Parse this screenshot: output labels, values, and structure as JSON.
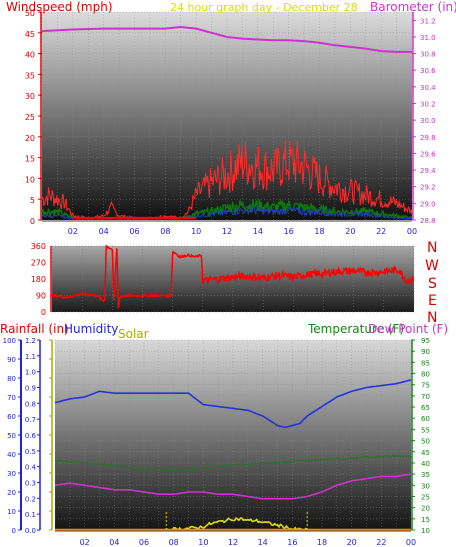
{
  "header": {
    "windspeed_label": "Windspeed (mph)",
    "title": "24 hour graph day - December 28",
    "barometer_label": "Barometer (in)"
  },
  "compass": {
    "letters": [
      "N",
      "W",
      "S",
      "E",
      "N"
    ]
  },
  "legend": {
    "rainfall": "Rainfall (in)",
    "humidity": "Humidity",
    "solar": "Solar",
    "temperature": "Temperature (F)",
    "dew_point": "Dew Point (F)"
  },
  "colors": {
    "wind": "#ff0000",
    "gust": "#ff2a2a",
    "wind_avg": "#0b7a0b",
    "wind_low": "#1f3fbf",
    "barometer": "#cc33cc",
    "humidity": "#2233dd",
    "temperature": "#227722",
    "dew_point": "#cc33cc",
    "solar": "#dddd00",
    "rain": "#ff8800",
    "left_axis_red": "#dd0000",
    "blue_axis": "#2222dd",
    "yellow_axis": "#aaaa00",
    "green_axis": "#118811",
    "pink_axis": "#cc33cc"
  },
  "chart_data": [
    {
      "type": "line",
      "title": "24 hour graph day - December 28",
      "x_ticks": [
        "02",
        "04",
        "06",
        "08",
        "10",
        "12",
        "14",
        "16",
        "18",
        "20",
        "22",
        "00"
      ],
      "x_range_hours": [
        0,
        24
      ],
      "ylabel": "Windspeed (mph)",
      "ylim": [
        0,
        50
      ],
      "y_ticks": [
        0,
        5,
        10,
        15,
        20,
        25,
        30,
        35,
        40,
        45,
        50
      ],
      "y2label": "Barometer (in)",
      "y2lim": [
        28.8,
        31.3
      ],
      "y2_ticks": [
        28.8,
        29.0,
        29.2,
        29.4,
        29.6,
        29.8,
        30.0,
        30.2,
        30.4,
        30.6,
        30.8,
        31.0,
        31.2
      ],
      "series": [
        {
          "axis": "y2",
          "x": [
            0,
            2,
            4,
            6,
            8,
            9,
            10,
            11,
            12,
            13,
            14,
            15,
            16,
            17,
            18,
            19,
            20,
            21,
            22,
            23,
            24
          ],
          "values": [
            31.07,
            31.09,
            31.1,
            31.1,
            31.1,
            31.12,
            31.1,
            31.05,
            31.0,
            30.98,
            30.97,
            30.96,
            30.96,
            30.95,
            30.93,
            30.9,
            30.88,
            30.86,
            30.83,
            30.82,
            30.82
          ]
        },
        {
          "axis": "y",
          "x": [
            0,
            0.5,
            1,
            1.5,
            2,
            3,
            4,
            4.5,
            5,
            6,
            7,
            8,
            9,
            9.5,
            10,
            11,
            12,
            13,
            14,
            15,
            16,
            17,
            18,
            19,
            20,
            21,
            22,
            23,
            23.5,
            24
          ],
          "values": [
            5,
            6,
            5,
            4,
            1,
            0.5,
            1,
            3,
            1,
            0.5,
            0.5,
            1,
            0.5,
            2,
            6,
            9,
            11,
            14,
            13,
            12,
            14,
            13,
            10,
            8,
            7,
            6,
            5,
            4,
            3,
            2
          ]
        },
        {
          "axis": "y",
          "x": [
            0,
            1,
            2,
            3,
            4,
            5,
            6,
            7,
            8,
            9,
            10,
            11,
            12,
            13,
            14,
            15,
            16,
            17,
            18,
            19,
            20,
            21,
            22,
            23,
            24
          ],
          "values": [
            2,
            2,
            0.5,
            0.3,
            0.5,
            0.3,
            0.3,
            0.3,
            0.5,
            0.3,
            1.5,
            2,
            3,
            3.5,
            3.5,
            3,
            3.5,
            3,
            2.5,
            2,
            2,
            2,
            1.5,
            1,
            0.5
          ]
        },
        {
          "axis": "y",
          "x": [
            0,
            1,
            2,
            3,
            4,
            5,
            6,
            7,
            8,
            9,
            10,
            11,
            12,
            13,
            14,
            15,
            16,
            17,
            18,
            19,
            20,
            21,
            22,
            23,
            24
          ],
          "values": [
            1,
            1,
            0.3,
            0.2,
            0.3,
            0.2,
            0.2,
            0.2,
            0.3,
            0.2,
            1,
            1.5,
            2,
            2.5,
            2.5,
            2,
            2.5,
            2,
            2,
            1.5,
            1.5,
            1.5,
            1,
            0.5,
            0.3
          ]
        }
      ]
    },
    {
      "type": "line",
      "x_range_hours": [
        0,
        24
      ],
      "ylim": [
        0,
        360
      ],
      "y_ticks": [
        0,
        90,
        180,
        270,
        360
      ],
      "series": [
        {
          "x": [
            0,
            1,
            2,
            3,
            3.4,
            3.5,
            3.6,
            4,
            4.1,
            4.3,
            4.4,
            4.5,
            5,
            6,
            7,
            7.9,
            8.0,
            8.2,
            8.5,
            9,
            9.5,
            9.9,
            10,
            11,
            12,
            13,
            14,
            15,
            16,
            17,
            18,
            19,
            20,
            21,
            22,
            23,
            23.5,
            24
          ],
          "values": [
            90,
            80,
            100,
            90,
            60,
            70,
            360,
            340,
            60,
            350,
            20,
            80,
            90,
            90,
            90,
            90,
            330,
            320,
            300,
            310,
            300,
            310,
            170,
            180,
            190,
            195,
            185,
            200,
            190,
            205,
            210,
            220,
            225,
            215,
            220,
            230,
            170,
            180
          ]
        }
      ]
    },
    {
      "type": "line",
      "x_range_hours": [
        0,
        24
      ],
      "ylabel": "Rainfall (in)",
      "ylim": [
        0,
        1.2
      ],
      "y_ticks": [
        0,
        0.1,
        0.2,
        0.3,
        0.4,
        0.5,
        0.6,
        0.7,
        0.8,
        0.9,
        1.0,
        1.1,
        1.2
      ],
      "humidity_ticks": [
        0,
        10,
        20,
        30,
        40,
        50,
        60,
        70,
        80,
        90,
        100
      ],
      "y2label": "Temperature (F)",
      "y2lim": [
        10,
        95
      ],
      "y2_ticks": [
        10,
        15,
        20,
        25,
        30,
        35,
        40,
        45,
        50,
        55,
        60,
        65,
        70,
        75,
        80,
        85,
        90,
        95
      ],
      "series": [
        {
          "name": "Humidity",
          "axis": "humidity",
          "x": [
            0,
            1,
            2,
            3,
            4,
            5,
            6,
            7,
            8,
            9,
            10,
            11,
            12,
            13,
            14,
            15,
            15.5,
            16,
            16.5,
            17,
            18,
            19,
            20,
            21,
            22,
            23,
            24
          ],
          "values": [
            67,
            69,
            70,
            73,
            72,
            72,
            72,
            72,
            72,
            72,
            66,
            65,
            64,
            63,
            60,
            55,
            54,
            55,
            56,
            60,
            65,
            70,
            73,
            75,
            76,
            77,
            79
          ]
        },
        {
          "name": "Temperature",
          "axis": "y2",
          "x": [
            0,
            1,
            2,
            3,
            4,
            5,
            6,
            7,
            8,
            9,
            10,
            11,
            12,
            13,
            14,
            15,
            16,
            17,
            18,
            19,
            20,
            21,
            22,
            23,
            24
          ],
          "values": [
            41,
            40.5,
            40,
            39.5,
            39,
            38,
            37,
            36.5,
            37,
            37,
            38,
            38.5,
            39,
            39.5,
            40,
            40,
            40.5,
            41,
            41.5,
            42,
            42,
            42.5,
            43,
            43,
            43
          ]
        },
        {
          "name": "Dew Point",
          "axis": "y2",
          "x": [
            0,
            1,
            2,
            3,
            4,
            5,
            6,
            7,
            8,
            9,
            10,
            11,
            12,
            13,
            14,
            15,
            16,
            17,
            18,
            19,
            20,
            21,
            22,
            23,
            24
          ],
          "values": [
            30,
            31,
            30,
            29,
            28,
            28,
            27,
            26,
            26,
            27,
            27,
            26,
            26,
            25,
            24,
            24,
            24,
            25,
            27,
            30,
            32,
            33,
            34,
            34,
            35
          ]
        },
        {
          "name": "Solar",
          "axis": "y",
          "x": [
            7.5,
            8,
            9,
            10,
            10.5,
            11,
            11.5,
            12,
            12.5,
            13,
            13.5,
            14,
            14.5,
            15,
            15.5,
            16,
            17
          ],
          "values": [
            0,
            0.005,
            0.01,
            0.02,
            0.04,
            0.05,
            0.06,
            0.07,
            0.07,
            0.06,
            0.06,
            0.05,
            0.04,
            0.03,
            0.02,
            0.005,
            0
          ]
        },
        {
          "name": "Rainfall",
          "axis": "y",
          "x": [
            0,
            24
          ],
          "values": [
            0,
            0
          ]
        }
      ]
    }
  ]
}
